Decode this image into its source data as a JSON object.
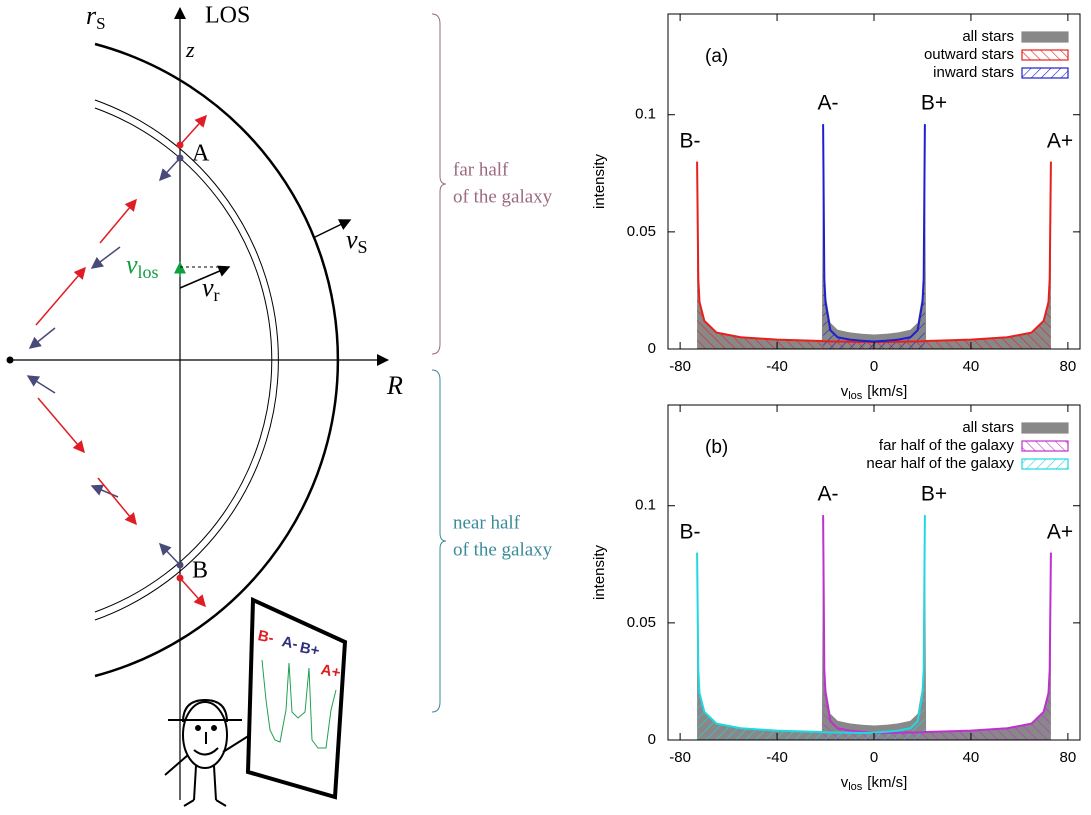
{
  "diagram": {
    "axis_vertical": "LOS",
    "z": "z",
    "r_s": {
      "main": "r",
      "sub": "S"
    },
    "axis_horizontal": "R",
    "point_a": "A",
    "point_b": "B",
    "v_s": {
      "main": "v",
      "sub": "S"
    },
    "v_los": {
      "main": "v",
      "sub": "los"
    },
    "v_r": {
      "main": "v",
      "sub": "r"
    },
    "far_half": [
      "far half",
      "of the galaxy"
    ],
    "near_half": [
      "near half",
      "of the galaxy"
    ],
    "screen_labels": [
      "B-",
      "A-",
      "B+",
      "A+"
    ]
  },
  "chart_data": [
    {
      "type": "area",
      "panel": "(a)",
      "x_label": {
        "main": "v",
        "sub": "los",
        "rest": "[km/s]"
      },
      "y_label": "intensity",
      "x": [
        -73,
        -72.5,
        -72,
        -70,
        -65,
        -55,
        -40,
        -21.5,
        -21,
        -20.5,
        -20,
        -18,
        -15,
        -10,
        -5,
        0,
        5,
        10,
        15,
        18,
        20,
        20.5,
        21,
        21.5,
        40,
        55,
        65,
        70,
        72,
        72.5,
        73
      ],
      "series": [
        {
          "name": "all stars",
          "color": "#888888",
          "fill": "solid",
          "values": [
            0.08,
            0.03,
            0.02,
            0.012,
            0.007,
            0.005,
            0.004,
            0.0034,
            0.0993,
            0.0333,
            0.0233,
            0.0112,
            0.0082,
            0.0071,
            0.0065,
            0.0062,
            0.0065,
            0.0071,
            0.0082,
            0.0112,
            0.0233,
            0.0333,
            0.0993,
            0.0034,
            0.004,
            0.005,
            0.007,
            0.012,
            0.02,
            0.03,
            0.08
          ]
        },
        {
          "name": "outward stars",
          "color": "#e8201c",
          "fill": "hatch",
          "values": [
            0.08,
            0.03,
            0.02,
            0.012,
            0.007,
            0.005,
            0.004,
            0.0034,
            0.0033,
            0.0033,
            0.0033,
            0.0032,
            0.0032,
            0.0031,
            0.003,
            0.003,
            0.003,
            0.0031,
            0.0032,
            0.0032,
            0.0033,
            0.0033,
            0.0033,
            0.0034,
            0.004,
            0.005,
            0.007,
            0.012,
            0.02,
            0.03,
            0.08
          ]
        },
        {
          "name": "inward stars",
          "color": "#1f1fd0",
          "fill": "hatch",
          "values": [
            null,
            null,
            null,
            null,
            null,
            null,
            null,
            null,
            0.096,
            0.03,
            0.02,
            0.008,
            0.005,
            0.004,
            0.0035,
            0.0032,
            0.0035,
            0.004,
            0.005,
            0.008,
            0.02,
            0.03,
            0.096,
            null,
            null,
            null,
            null,
            null,
            null,
            null,
            null
          ]
        }
      ],
      "xlim": [
        -85,
        85
      ],
      "ylim": [
        0,
        0.143
      ],
      "xticks": [
        -80,
        -40,
        0,
        40,
        80
      ],
      "yticks": [
        0,
        0.05,
        0.1
      ],
      "annotations": [
        "B-",
        "A-",
        "B+",
        "A+"
      ],
      "legend": "upper right"
    },
    {
      "type": "area",
      "panel": "(b)",
      "x_label": {
        "main": "v",
        "sub": "los",
        "rest": "[km/s]"
      },
      "y_label": "intensity",
      "x": [
        -73,
        -72.5,
        -72,
        -70,
        -65,
        -55,
        -40,
        -21.5,
        -21,
        -20.5,
        -20,
        -18,
        -15,
        -10,
        -5,
        0,
        5,
        10,
        15,
        18,
        20,
        20.5,
        21,
        21.5,
        40,
        55,
        65,
        70,
        72,
        72.5,
        73
      ],
      "series": [
        {
          "name": "all stars",
          "color": "#888888",
          "fill": "solid",
          "values": [
            0.08,
            0.03,
            0.02,
            0.012,
            0.007,
            0.005,
            0.004,
            0.0034,
            0.0993,
            0.0333,
            0.0233,
            0.0112,
            0.0082,
            0.0071,
            0.0065,
            0.0062,
            0.0065,
            0.0071,
            0.0082,
            0.0112,
            0.0233,
            0.0333,
            0.0993,
            0.0034,
            0.004,
            0.005,
            0.007,
            0.012,
            0.02,
            0.03,
            0.08
          ]
        },
        {
          "name": "far half of the galaxy",
          "color": "#c030d0",
          "fill": "hatch",
          "values": [
            null,
            null,
            null,
            null,
            null,
            null,
            null,
            null,
            0.096,
            0.03,
            0.02,
            0.008,
            0.005,
            0.004,
            0.0035,
            0.0032,
            0.003,
            0.0031,
            0.0032,
            0.0032,
            0.0033,
            0.0033,
            0.0033,
            0.0034,
            0.004,
            0.005,
            0.007,
            0.012,
            0.02,
            0.03,
            0.08
          ]
        },
        {
          "name": "near half of the galaxy",
          "color": "#20d8e0",
          "fill": "hatch",
          "values": [
            0.08,
            0.03,
            0.02,
            0.012,
            0.007,
            0.005,
            0.004,
            0.0034,
            0.0033,
            0.0033,
            0.0033,
            0.0032,
            0.0032,
            0.0031,
            0.003,
            0.0032,
            0.0035,
            0.004,
            0.005,
            0.008,
            0.02,
            0.03,
            0.096,
            null,
            null,
            null,
            null,
            null,
            null,
            null,
            null
          ]
        }
      ],
      "xlim": [
        -85,
        85
      ],
      "ylim": [
        0,
        0.143
      ],
      "xticks": [
        -80,
        -40,
        0,
        40,
        80
      ],
      "yticks": [
        0,
        0.05,
        0.1
      ],
      "annotations": [
        "B-",
        "A-",
        "B+",
        "A+"
      ],
      "legend": "upper right"
    }
  ]
}
